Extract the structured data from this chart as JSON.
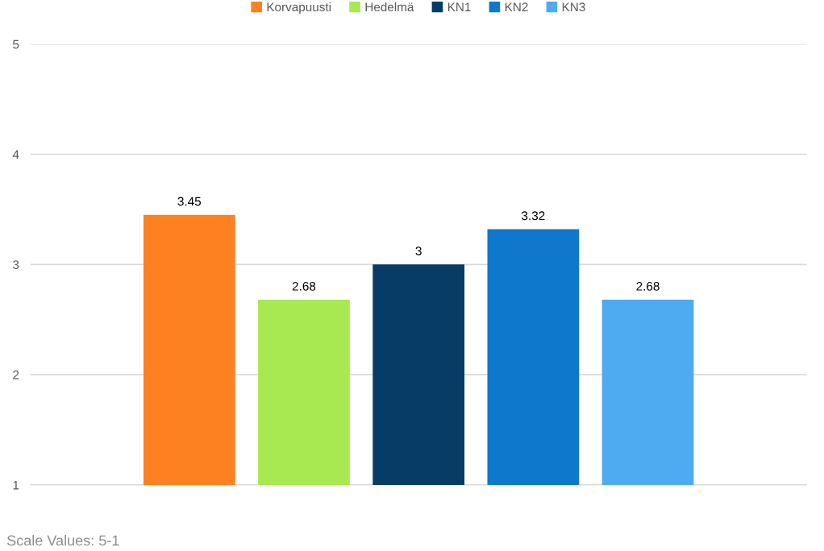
{
  "chart_data": {
    "type": "bar",
    "categories": [
      null
    ],
    "series": [
      {
        "name": "Korvapuusti",
        "color": "#fd8021",
        "values": [
          3.45
        ]
      },
      {
        "name": "Hedelmä",
        "color": "#a8e951",
        "values": [
          2.68
        ]
      },
      {
        "name": "KN1",
        "color": "#073c66",
        "values": [
          3
        ]
      },
      {
        "name": "KN2",
        "color": "#0d78cc",
        "values": [
          3.32
        ]
      },
      {
        "name": "KN3",
        "color": "#4eabf1",
        "values": [
          2.68
        ]
      }
    ],
    "ylim": [
      1,
      5
    ],
    "yticks": [
      1,
      2,
      3,
      4,
      5
    ],
    "grid": "y",
    "legend": "top",
    "data_labels": true,
    "annotations": [
      "Scale Values: 5-1"
    ]
  }
}
